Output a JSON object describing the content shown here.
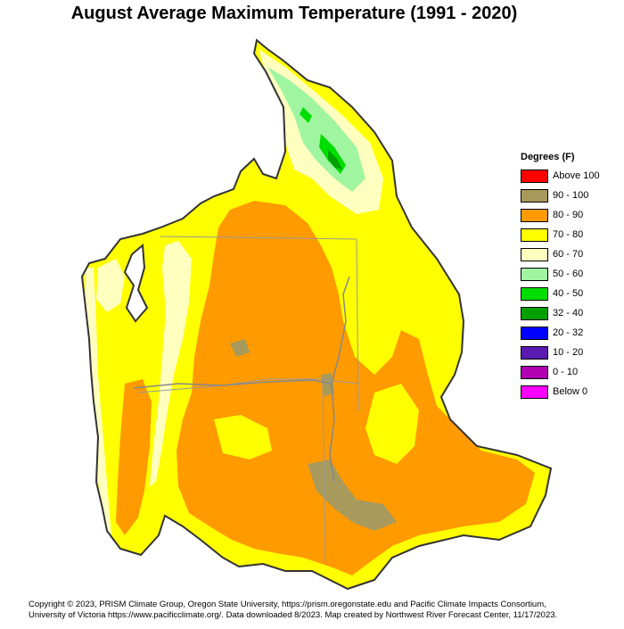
{
  "title": "August Average Maximum Temperature (1991 - 2020)",
  "legend": {
    "title": "Degrees (F)",
    "items": [
      {
        "label": "Above 100",
        "color": "#ff0000"
      },
      {
        "label": "90 - 100",
        "color": "#a89a5c"
      },
      {
        "label": "80 - 90",
        "color": "#ff9a00"
      },
      {
        "label": "70 - 80",
        "color": "#ffff00"
      },
      {
        "label": "60 - 70",
        "color": "#ffffc0"
      },
      {
        "label": "50 - 60",
        "color": "#a0f5a0"
      },
      {
        "label": "40 - 50",
        "color": "#00dd00"
      },
      {
        "label": "32 - 40",
        "color": "#00a000"
      },
      {
        "label": "20 - 32",
        "color": "#0000ff"
      },
      {
        "label": "10 - 20",
        "color": "#5a1ab0"
      },
      {
        "label": "0 - 10",
        "color": "#b000b0"
      },
      {
        "label": "Below 0",
        "color": "#ff00ff"
      }
    ]
  },
  "footer": {
    "line1": "Copyright © 2023, PRISM Climate Group, Oregon State University, https://prism.oregonstate.edu and Pacific Climate Impacts Consortium,",
    "line2": "University of Victoria https://www.pacificclimate.org/.  Data downloaded 8/2023. Map created by Northwest River Forecast Center, 11/17/2023."
  }
}
